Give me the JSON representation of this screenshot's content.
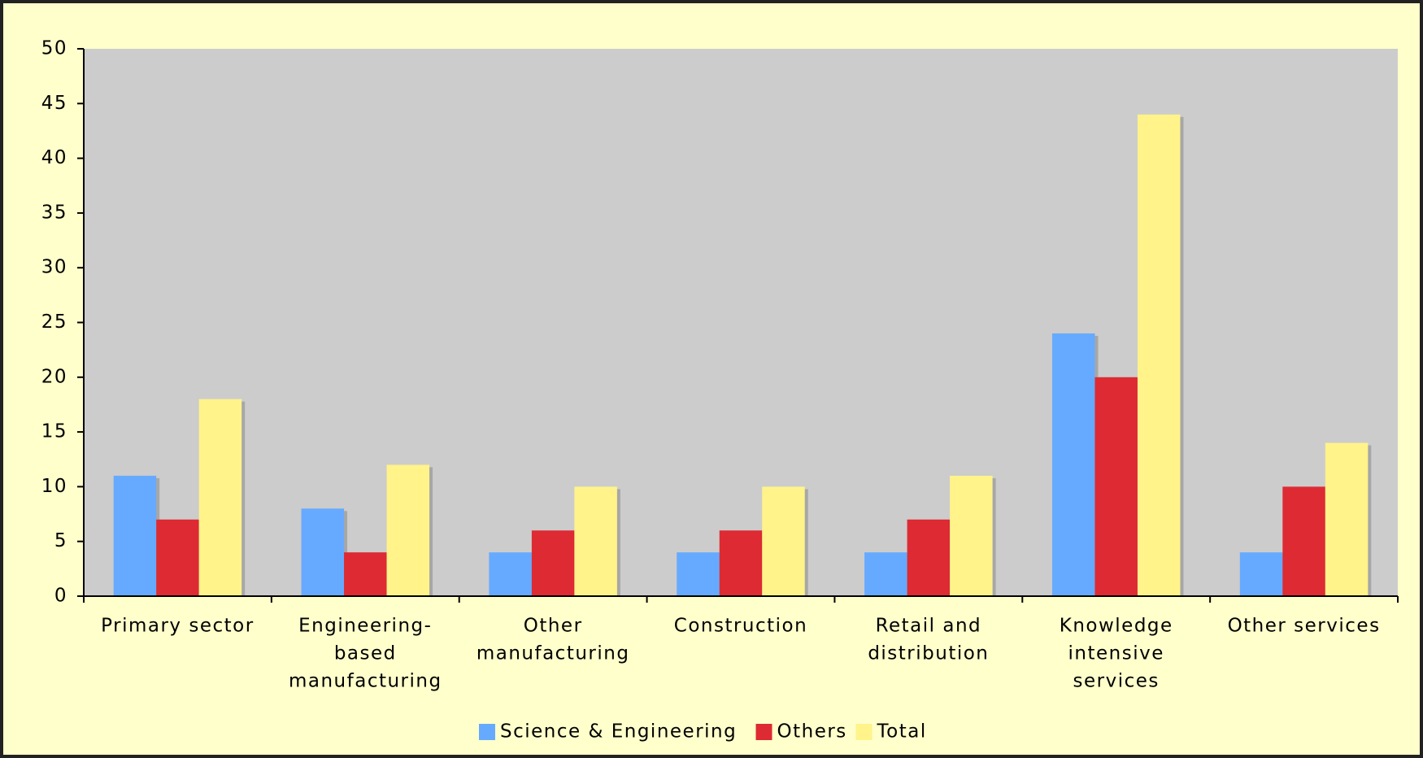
{
  "chart_data": {
    "type": "bar",
    "categories": [
      [
        "Primary sector"
      ],
      [
        "Engineering-",
        "based",
        "manufacturing"
      ],
      [
        "Other",
        "manufacturing"
      ],
      [
        "Construction"
      ],
      [
        "Retail and",
        "distribution"
      ],
      [
        "Knowledge",
        "intensive",
        "services"
      ],
      [
        "Other services"
      ]
    ],
    "series": [
      {
        "name": "Science & Engineering",
        "color": "#66aaff",
        "values": [
          11,
          8,
          4,
          4,
          4,
          24,
          4
        ]
      },
      {
        "name": "Others",
        "color": "#dd2a33",
        "values": [
          7,
          4,
          6,
          6,
          7,
          20,
          10
        ]
      },
      {
        "name": "Total",
        "color": "#fff38a",
        "values": [
          18,
          12,
          10,
          10,
          11,
          44,
          14
        ]
      }
    ],
    "ylim": [
      0,
      50
    ],
    "yticks": [
      0,
      5,
      10,
      15,
      20,
      25,
      30,
      35,
      40,
      45,
      50
    ],
    "legend": "bottom"
  }
}
